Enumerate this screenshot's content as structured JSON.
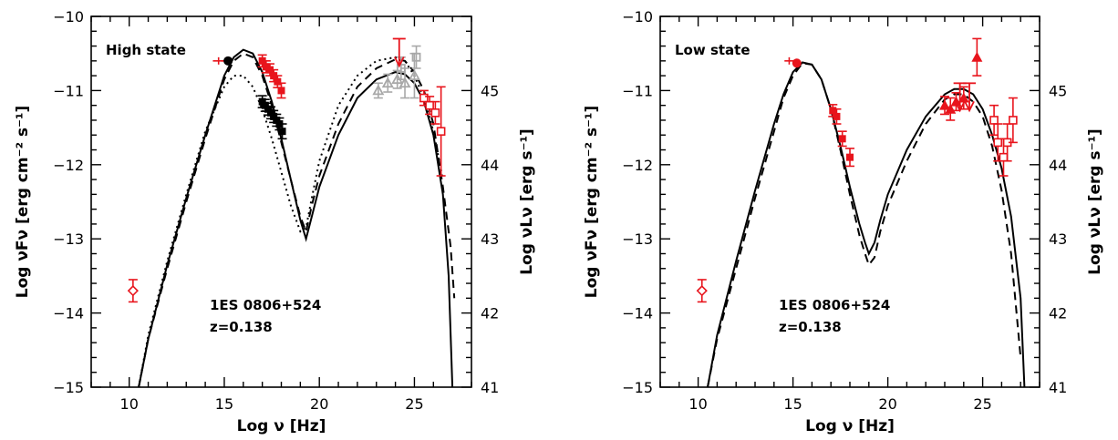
{
  "chart_data": [
    {
      "type": "scatter",
      "title": "High state",
      "xlabel": "Log ν  [Hz]",
      "ylabel": "Log νFν  [erg cm⁻² s⁻¹]",
      "ylabel_right": "Log νLν  [erg s⁻¹]",
      "annotation": [
        "1ES 0806+524",
        "z=0.138"
      ],
      "xlim": [
        8,
        28
      ],
      "ylim": [
        -15,
        -10
      ],
      "xticks": [
        "10",
        "15",
        "20",
        "25"
      ],
      "yticks": [
        "-15",
        "-14",
        "-13",
        "-12",
        "-11",
        "-10"
      ],
      "right_axis": {
        "ticks": [
          "41",
          "42",
          "43",
          "44",
          "45"
        ],
        "offset": 56.0
      },
      "grid": false,
      "series": [
        {
          "style": "solid",
          "color": "#000000",
          "kind": "line",
          "x": [
            10.5,
            11,
            12,
            13,
            14,
            15,
            15.5,
            16,
            16.5,
            17,
            17.5,
            18,
            18.5,
            19,
            19.3,
            19.6,
            20,
            21,
            22,
            23,
            24,
            24.5,
            25,
            25.5,
            26,
            26.5,
            26.8,
            27.0
          ],
          "y": [
            -15.0,
            -14.35,
            -13.35,
            -12.45,
            -11.6,
            -10.8,
            -10.55,
            -10.45,
            -10.5,
            -10.75,
            -11.15,
            -11.65,
            -12.2,
            -12.75,
            -13.0,
            -12.7,
            -12.3,
            -11.6,
            -11.1,
            -10.85,
            -10.75,
            -10.78,
            -10.9,
            -11.15,
            -11.6,
            -12.4,
            -13.5,
            -15.0
          ]
        },
        {
          "style": "dashed",
          "color": "#000000",
          "kind": "line",
          "x": [
            10.5,
            11,
            12,
            13,
            14,
            15,
            15.5,
            16,
            16.5,
            17,
            17.5,
            18,
            18.5,
            19,
            19.3,
            19.6,
            20,
            21,
            22,
            23,
            24,
            24.5,
            25,
            25.5,
            26,
            26.5,
            26.9,
            27.1
          ],
          "y": [
            -15.0,
            -14.35,
            -13.4,
            -12.5,
            -11.65,
            -10.85,
            -10.6,
            -10.5,
            -10.55,
            -10.8,
            -11.2,
            -11.7,
            -12.2,
            -12.7,
            -12.9,
            -12.55,
            -12.15,
            -11.45,
            -10.95,
            -10.7,
            -10.58,
            -10.6,
            -10.75,
            -11.0,
            -11.45,
            -12.3,
            -13.1,
            -13.8
          ]
        },
        {
          "style": "dotted",
          "color": "#000000",
          "kind": "line",
          "x": [
            10.5,
            11,
            12,
            13,
            14,
            15,
            15.5,
            16,
            16.5,
            17,
            17.5,
            18,
            18.5,
            19,
            19.3,
            19.6,
            20,
            21,
            22,
            23,
            24,
            24.5,
            25,
            25.5,
            26,
            26.5
          ],
          "y": [
            -15.0,
            -14.3,
            -13.3,
            -12.4,
            -11.55,
            -10.95,
            -10.8,
            -10.8,
            -10.95,
            -11.25,
            -11.65,
            -12.1,
            -12.55,
            -12.9,
            -12.85,
            -12.45,
            -11.95,
            -11.2,
            -10.8,
            -10.6,
            -10.55,
            -10.6,
            -10.8,
            -11.1,
            -11.55,
            -12.2
          ]
        },
        {
          "name": "",
          "color": "#e8141c",
          "kind": "open-diamond",
          "x": [
            10.2
          ],
          "y": [
            -13.7
          ],
          "yerr": [
            0.15
          ]
        },
        {
          "name": "",
          "color": "#e8141c",
          "kind": "red-cross",
          "x": [
            14.7,
            15.1
          ],
          "y": [
            -10.6,
            -10.6
          ],
          "xerr": [
            0.3,
            0.25
          ]
        },
        {
          "name": "",
          "color": "#000000",
          "kind": "black-dot",
          "x": [
            15.2
          ],
          "y": [
            -10.6
          ]
        },
        {
          "name": "",
          "color": "#e8141c",
          "kind": "red-sq",
          "x": [
            17.0,
            17.2,
            17.4,
            17.6,
            17.8,
            18.0
          ],
          "y": [
            -10.6,
            -10.68,
            -10.72,
            -10.8,
            -10.88,
            -11.0
          ],
          "yerr": [
            0.08,
            0.08,
            0.08,
            0.08,
            0.08,
            0.1
          ]
        },
        {
          "name": "",
          "color": "#000000",
          "kind": "black-sq",
          "x": [
            17.0,
            17.15,
            17.3,
            17.45,
            17.6,
            17.75,
            17.9,
            18.05
          ],
          "y": [
            -11.15,
            -11.2,
            -11.25,
            -11.3,
            -11.35,
            -11.4,
            -11.45,
            -11.55
          ],
          "yerr": [
            0.08,
            0.08,
            0.08,
            0.08,
            0.08,
            0.08,
            0.08,
            0.1
          ]
        },
        {
          "name": "",
          "color": "#a8a8a8",
          "kind": "gray-open-tri",
          "x": [
            23.1,
            23.6,
            24.1,
            24.5,
            25.0
          ],
          "y": [
            -11.0,
            -10.9,
            -10.85,
            -10.9,
            -10.8
          ],
          "yerr": [
            0.1,
            0.12,
            0.12,
            0.2,
            0.3
          ]
        },
        {
          "name": "",
          "color": "#a8a8a8",
          "kind": "gray-open-sq",
          "x": [
            25.1,
            24.3
          ],
          "y": [
            -10.55,
            -10.7
          ],
          "yerr": [
            0.15,
            0.15
          ]
        },
        {
          "name": "",
          "color": "#e8141c",
          "kind": "red-arrow",
          "x": [
            24.2
          ],
          "y": [
            -10.35
          ]
        },
        {
          "name": "",
          "color": "#e8141c",
          "kind": "red-open-sq",
          "x": [
            25.5,
            25.8,
            26.1,
            26.4
          ],
          "y": [
            -11.1,
            -11.2,
            -11.3,
            -11.55
          ],
          "yerr": [
            0.1,
            0.12,
            0.15,
            0.6
          ]
        }
      ]
    },
    {
      "type": "scatter",
      "title": "Low state",
      "xlabel": "Log ν  [Hz]",
      "ylabel": "Log νFν  [erg cm⁻² s⁻¹]",
      "ylabel_right": "Log νLν  [erg s⁻¹]",
      "annotation": [
        "1ES 0806+524",
        "z=0.138"
      ],
      "xlim": [
        8,
        28
      ],
      "ylim": [
        -15,
        -10
      ],
      "xticks": [
        "10",
        "15",
        "20",
        "25"
      ],
      "yticks": [
        "-15",
        "-14",
        "-13",
        "-12",
        "-11",
        "-10"
      ],
      "right_axis": {
        "ticks": [
          "41",
          "42",
          "43",
          "44",
          "45"
        ],
        "offset": 56.0
      },
      "grid": false,
      "series": [
        {
          "style": "solid",
          "color": "#000000",
          "kind": "line",
          "x": [
            10.5,
            11,
            12,
            13,
            14,
            14.5,
            15,
            15.5,
            16,
            16.5,
            17,
            17.5,
            18,
            18.5,
            18.8,
            19.0,
            19.3,
            19.6,
            20,
            21,
            22,
            23,
            23.5,
            24,
            24.5,
            25,
            25.5,
            26,
            26.5,
            27,
            27.2
          ],
          "y": [
            -15.0,
            -14.3,
            -13.3,
            -12.35,
            -11.45,
            -11.05,
            -10.75,
            -10.62,
            -10.65,
            -10.85,
            -11.25,
            -11.75,
            -12.3,
            -12.8,
            -13.05,
            -13.2,
            -13.05,
            -12.75,
            -12.4,
            -11.8,
            -11.35,
            -11.05,
            -10.98,
            -10.98,
            -11.05,
            -11.25,
            -11.6,
            -12.05,
            -12.7,
            -13.8,
            -15.0
          ]
        },
        {
          "style": "dashed",
          "color": "#000000",
          "kind": "line",
          "x": [
            10.5,
            11,
            12,
            13,
            14,
            14.5,
            15,
            15.5,
            16,
            16.5,
            17,
            17.5,
            18,
            18.5,
            18.8,
            19.0,
            19.3,
            19.6,
            20,
            21,
            22,
            23,
            23.5,
            24,
            24.5,
            25,
            25.5,
            26,
            26.5,
            27
          ],
          "y": [
            -15.0,
            -14.35,
            -13.4,
            -12.45,
            -11.55,
            -11.1,
            -10.8,
            -10.63,
            -10.65,
            -10.85,
            -11.25,
            -11.8,
            -12.4,
            -12.95,
            -13.2,
            -13.35,
            -13.25,
            -12.9,
            -12.55,
            -11.95,
            -11.45,
            -11.12,
            -11.05,
            -11.05,
            -11.15,
            -11.35,
            -11.75,
            -12.35,
            -13.2,
            -14.6
          ]
        },
        {
          "name": "",
          "color": "#e8141c",
          "kind": "open-diamond",
          "x": [
            10.2
          ],
          "y": [
            -13.7
          ],
          "yerr": [
            0.15
          ]
        },
        {
          "name": "",
          "color": "#e8141c",
          "kind": "red-cross",
          "x": [
            14.8
          ],
          "y": [
            -10.6
          ],
          "xerr": [
            0.25
          ]
        },
        {
          "name": "",
          "color": "#e8141c",
          "kind": "red-dot",
          "x": [
            15.2
          ],
          "y": [
            -10.63
          ]
        },
        {
          "name": "",
          "color": "#e8141c",
          "kind": "red-sq",
          "x": [
            17.1,
            17.3,
            17.6,
            18.0
          ],
          "y": [
            -11.27,
            -11.35,
            -11.65,
            -11.9
          ],
          "yerr": [
            0.08,
            0.1,
            0.1,
            0.12
          ]
        },
        {
          "name": "",
          "color": "#e8141c",
          "kind": "red-tri",
          "x": [
            23.0,
            23.3,
            23.6,
            24.0,
            24.7
          ],
          "y": [
            -11.2,
            -11.25,
            -11.15,
            -11.1,
            -10.55
          ],
          "yerr": [
            0.12,
            0.15,
            0.12,
            0.15,
            0.25
          ]
        },
        {
          "name": "",
          "color": "#e8141c",
          "kind": "red-arrow",
          "x": [
            23.8,
            24.3
          ],
          "y": [
            -10.95,
            -10.95
          ]
        },
        {
          "name": "",
          "color": "#e8141c",
          "kind": "red-open-sq",
          "x": [
            25.6,
            25.8,
            26.1,
            26.3,
            26.6
          ],
          "y": [
            -11.4,
            -11.7,
            -11.9,
            -11.7,
            -11.4
          ],
          "yerr": [
            0.2,
            0.25,
            0.25,
            0.25,
            0.3
          ]
        }
      ]
    }
  ]
}
